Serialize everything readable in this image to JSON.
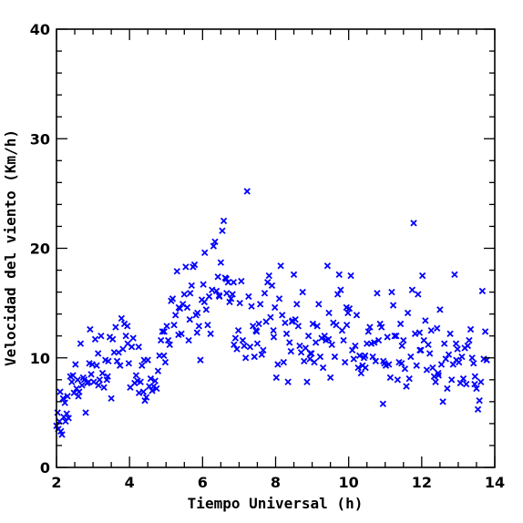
{
  "chart_data": {
    "type": "scatter",
    "title": "",
    "xlabel": "Tiempo Universal (h)",
    "ylabel": "Velocidad del viento (Km/h)",
    "xlim": [
      2,
      14
    ],
    "ylim": [
      0,
      40
    ],
    "xticks": [
      2,
      4,
      6,
      8,
      10,
      12,
      14
    ],
    "yticks": [
      0,
      10,
      20,
      30,
      40
    ],
    "xtick_labels": [
      "2",
      "4",
      "6",
      "8",
      "10",
      "12",
      "14"
    ],
    "ytick_labels": [
      "0",
      "10",
      "20",
      "30",
      "40"
    ],
    "grid": false,
    "legend": "none",
    "marker_color": "#0000ff",
    "marker": "x",
    "points": [
      [
        2.0,
        3.8
      ],
      [
        2.03,
        5.0
      ],
      [
        2.05,
        3.5
      ],
      [
        2.08,
        4.2
      ],
      [
        2.1,
        6.9
      ],
      [
        2.12,
        3.3
      ],
      [
        2.15,
        3.0
      ],
      [
        2.18,
        6.3
      ],
      [
        2.2,
        4.6
      ],
      [
        2.23,
        5.9
      ],
      [
        2.25,
        4.2
      ],
      [
        2.28,
        4.9
      ],
      [
        2.3,
        6.5
      ],
      [
        2.33,
        4.5
      ],
      [
        2.38,
        8.3
      ],
      [
        2.42,
        7.8
      ],
      [
        2.45,
        8.4
      ],
      [
        2.48,
        6.8
      ],
      [
        2.52,
        9.4
      ],
      [
        2.55,
        7.2
      ],
      [
        2.58,
        8.0
      ],
      [
        2.62,
        6.9
      ],
      [
        2.66,
        11.3
      ],
      [
        2.7,
        7.5
      ],
      [
        2.73,
        8.2
      ],
      [
        2.76,
        8.0
      ],
      [
        2.8,
        5.0
      ],
      [
        2.84,
        7.7
      ],
      [
        2.88,
        7.8
      ],
      [
        2.92,
        12.6
      ],
      [
        2.95,
        8.5
      ],
      [
        2.98,
        9.4
      ],
      [
        3.02,
        7.8
      ],
      [
        3.06,
        11.7
      ],
      [
        3.1,
        9.3
      ],
      [
        3.14,
        10.4
      ],
      [
        3.18,
        8.0
      ],
      [
        3.22,
        12.0
      ],
      [
        3.26,
        8.6
      ],
      [
        3.3,
        7.3
      ],
      [
        3.34,
        9.8
      ],
      [
        3.38,
        8.0
      ],
      [
        3.42,
        9.7
      ],
      [
        3.46,
        11.9
      ],
      [
        3.5,
        6.3
      ],
      [
        3.54,
        11.7
      ],
      [
        3.58,
        10.5
      ],
      [
        3.62,
        12.8
      ],
      [
        3.66,
        9.7
      ],
      [
        3.7,
        10.5
      ],
      [
        3.74,
        9.3
      ],
      [
        3.78,
        13.6
      ],
      [
        3.82,
        10.8
      ],
      [
        3.86,
        13.1
      ],
      [
        3.9,
        12.0
      ],
      [
        3.94,
        12.9
      ],
      [
        3.98,
        9.5
      ],
      [
        4.02,
        7.3
      ],
      [
        4.06,
        11.0
      ],
      [
        4.1,
        11.8
      ],
      [
        4.14,
        7.7
      ],
      [
        4.18,
        8.4
      ],
      [
        4.22,
        7.9
      ],
      [
        4.26,
        6.8
      ],
      [
        4.3,
        7.8
      ],
      [
        4.34,
        9.3
      ],
      [
        4.38,
        6.9
      ],
      [
        4.42,
        6.1
      ],
      [
        4.46,
        6.4
      ],
      [
        4.5,
        9.8
      ],
      [
        4.54,
        7.4
      ],
      [
        4.58,
        8.1
      ],
      [
        4.62,
        7.0
      ],
      [
        4.66,
        7.4
      ],
      [
        4.7,
        7.9
      ],
      [
        4.74,
        7.2
      ],
      [
        4.78,
        8.8
      ],
      [
        4.82,
        10.2
      ],
      [
        4.86,
        11.6
      ],
      [
        4.9,
        12.4
      ],
      [
        4.94,
        10.2
      ],
      [
        4.98,
        9.6
      ],
      [
        5.02,
        12.9
      ],
      [
        5.06,
        11.6
      ],
      [
        5.1,
        11.2
      ],
      [
        5.14,
        15.2
      ],
      [
        5.18,
        15.4
      ],
      [
        5.22,
        13.0
      ],
      [
        5.26,
        13.9
      ],
      [
        5.3,
        17.9
      ],
      [
        5.34,
        12.1
      ],
      [
        5.38,
        14.5
      ],
      [
        5.42,
        12.2
      ],
      [
        5.46,
        14.9
      ],
      [
        5.5,
        15.8
      ],
      [
        5.54,
        18.3
      ],
      [
        5.58,
        14.6
      ],
      [
        5.62,
        11.6
      ],
      [
        5.66,
        15.9
      ],
      [
        5.7,
        16.6
      ],
      [
        5.74,
        18.3
      ],
      [
        5.78,
        18.5
      ],
      [
        5.82,
        13.9
      ],
      [
        5.86,
        14.1
      ],
      [
        5.9,
        12.9
      ],
      [
        5.94,
        9.8
      ],
      [
        5.98,
        15.3
      ],
      [
        6.02,
        16.7
      ],
      [
        6.06,
        19.6
      ],
      [
        6.1,
        14.4
      ],
      [
        6.14,
        13.0
      ],
      [
        6.18,
        15.6
      ],
      [
        6.22,
        12.2
      ],
      [
        6.26,
        16.2
      ],
      [
        6.3,
        20.2
      ],
      [
        6.34,
        20.6
      ],
      [
        6.38,
        16.1
      ],
      [
        6.42,
        17.4
      ],
      [
        6.46,
        15.6
      ],
      [
        6.5,
        18.7
      ],
      [
        6.54,
        21.6
      ],
      [
        6.58,
        22.5
      ],
      [
        6.62,
        17.3
      ],
      [
        6.66,
        15.9
      ],
      [
        6.7,
        16.9
      ],
      [
        6.74,
        15.1
      ],
      [
        6.78,
        15.4
      ],
      [
        6.82,
        15.8
      ],
      [
        6.86,
        11.2
      ],
      [
        6.9,
        11.8
      ],
      [
        6.94,
        10.8
      ],
      [
        6.98,
        12.5
      ],
      [
        7.02,
        15.0
      ],
      [
        7.06,
        17.0
      ],
      [
        7.1,
        11.6
      ],
      [
        7.14,
        11.1
      ],
      [
        7.18,
        10.0
      ],
      [
        7.22,
        25.2
      ],
      [
        7.26,
        15.6
      ],
      [
        7.3,
        11.0
      ],
      [
        7.34,
        14.7
      ],
      [
        7.38,
        12.9
      ],
      [
        7.42,
        10.1
      ],
      [
        7.46,
        12.5
      ],
      [
        7.5,
        11.3
      ],
      [
        7.54,
        13.1
      ],
      [
        7.58,
        14.9
      ],
      [
        7.62,
        10.3
      ],
      [
        7.66,
        10.7
      ],
      [
        7.7,
        15.9
      ],
      [
        7.74,
        13.3
      ],
      [
        7.78,
        16.9
      ],
      [
        7.82,
        17.5
      ],
      [
        7.86,
        13.7
      ],
      [
        7.9,
        16.6
      ],
      [
        7.94,
        12.5
      ],
      [
        7.98,
        14.6
      ],
      [
        8.02,
        8.2
      ],
      [
        8.06,
        9.4
      ],
      [
        8.1,
        15.4
      ],
      [
        8.14,
        18.4
      ],
      [
        8.18,
        13.9
      ],
      [
        8.22,
        9.6
      ],
      [
        8.26,
        13.2
      ],
      [
        8.3,
        12.2
      ],
      [
        8.34,
        7.8
      ],
      [
        8.38,
        11.4
      ],
      [
        8.42,
        10.6
      ],
      [
        8.46,
        13.4
      ],
      [
        8.5,
        17.6
      ],
      [
        8.54,
        13.5
      ],
      [
        8.58,
        14.9
      ],
      [
        8.62,
        12.9
      ],
      [
        8.66,
        11.1
      ],
      [
        8.7,
        10.5
      ],
      [
        8.74,
        16.0
      ],
      [
        8.78,
        9.7
      ],
      [
        8.82,
        10.9
      ],
      [
        8.86,
        7.8
      ],
      [
        8.9,
        12.0
      ],
      [
        8.94,
        9.9
      ],
      [
        8.98,
        10.4
      ],
      [
        9.02,
        13.1
      ],
      [
        9.06,
        9.6
      ],
      [
        9.1,
        11.4
      ],
      [
        9.14,
        12.9
      ],
      [
        9.18,
        14.9
      ],
      [
        9.22,
        10.1
      ],
      [
        9.26,
        11.8
      ],
      [
        9.3,
        9.1
      ],
      [
        9.34,
        12.0
      ],
      [
        9.38,
        11.6
      ],
      [
        9.42,
        18.4
      ],
      [
        9.46,
        14.1
      ],
      [
        9.5,
        8.2
      ],
      [
        9.54,
        11.2
      ],
      [
        9.58,
        13.2
      ],
      [
        9.62,
        10.1
      ],
      [
        9.66,
        13.0
      ],
      [
        9.7,
        15.8
      ],
      [
        9.74,
        17.6
      ],
      [
        9.78,
        16.2
      ],
      [
        9.82,
        12.5
      ],
      [
        9.86,
        11.6
      ],
      [
        9.9,
        9.6
      ],
      [
        9.94,
        14.6
      ],
      [
        9.98,
        14.1
      ],
      [
        10.02,
        14.5
      ],
      [
        10.06,
        17.5
      ],
      [
        10.1,
        10.7
      ],
      [
        10.14,
        9.9
      ],
      [
        10.18,
        11.1
      ],
      [
        10.22,
        13.9
      ],
      [
        10.26,
        9.1
      ],
      [
        10.3,
        10.2
      ],
      [
        10.34,
        8.6
      ],
      [
        10.38,
        9.3
      ],
      [
        10.42,
        10.0
      ],
      [
        10.46,
        9.1
      ],
      [
        10.5,
        11.3
      ],
      [
        10.54,
        12.4
      ],
      [
        10.58,
        12.8
      ],
      [
        10.62,
        11.3
      ],
      [
        10.66,
        10.1
      ],
      [
        10.7,
        11.4
      ],
      [
        10.74,
        9.7
      ],
      [
        10.78,
        15.9
      ],
      [
        10.82,
        11.6
      ],
      [
        10.86,
        13.1
      ],
      [
        10.9,
        12.8
      ],
      [
        10.94,
        5.8
      ],
      [
        10.98,
        9.5
      ],
      [
        11.02,
        9.3
      ],
      [
        11.06,
        11.9
      ],
      [
        11.1,
        9.4
      ],
      [
        11.14,
        8.2
      ],
      [
        11.18,
        16.0
      ],
      [
        11.22,
        14.8
      ],
      [
        11.26,
        12.0
      ],
      [
        11.3,
        12.0
      ],
      [
        11.34,
        8.0
      ],
      [
        11.38,
        9.6
      ],
      [
        11.42,
        13.1
      ],
      [
        11.46,
        11.1
      ],
      [
        11.5,
        11.6
      ],
      [
        11.54,
        9.0
      ],
      [
        11.58,
        7.4
      ],
      [
        11.62,
        14.1
      ],
      [
        11.66,
        8.1
      ],
      [
        11.7,
        10.1
      ],
      [
        11.74,
        16.2
      ],
      [
        11.78,
        22.3
      ],
      [
        11.82,
        12.2
      ],
      [
        11.86,
        9.3
      ],
      [
        11.9,
        15.8
      ],
      [
        11.94,
        12.3
      ],
      [
        11.98,
        10.7
      ],
      [
        12.02,
        17.5
      ],
      [
        12.06,
        11.6
      ],
      [
        12.1,
        13.4
      ],
      [
        12.14,
        8.9
      ],
      [
        12.18,
        11.2
      ],
      [
        12.22,
        10.4
      ],
      [
        12.26,
        12.5
      ],
      [
        12.3,
        9.1
      ],
      [
        12.34,
        8.3
      ],
      [
        12.38,
        7.8
      ],
      [
        12.42,
        12.7
      ],
      [
        12.46,
        8.4
      ],
      [
        12.5,
        14.4
      ],
      [
        12.54,
        9.4
      ],
      [
        12.58,
        6.0
      ],
      [
        12.62,
        11.3
      ],
      [
        12.66,
        9.9
      ],
      [
        12.7,
        7.2
      ],
      [
        12.74,
        10.3
      ],
      [
        12.78,
        12.2
      ],
      [
        12.82,
        8.0
      ],
      [
        12.86,
        9.4
      ],
      [
        12.9,
        17.6
      ],
      [
        12.94,
        11.3
      ],
      [
        12.98,
        10.8
      ],
      [
        13.02,
        9.6
      ],
      [
        13.06,
        7.7
      ],
      [
        13.1,
        10.1
      ],
      [
        13.14,
        8.1
      ],
      [
        13.18,
        10.9
      ],
      [
        13.22,
        7.6
      ],
      [
        13.26,
        11.1
      ],
      [
        13.3,
        11.6
      ],
      [
        13.34,
        12.6
      ],
      [
        13.38,
        10.0
      ],
      [
        13.42,
        9.5
      ],
      [
        13.46,
        8.3
      ],
      [
        13.5,
        7.2
      ],
      [
        13.54,
        5.3
      ],
      [
        13.58,
        6.1
      ],
      [
        13.62,
        7.8
      ],
      [
        13.66,
        16.1
      ],
      [
        13.7,
        9.9
      ],
      [
        13.74,
        12.4
      ],
      [
        13.78,
        9.8
      ],
      [
        2.6,
        6.5
      ],
      [
        2.9,
        9.5
      ],
      [
        3.4,
        8.3
      ],
      [
        3.95,
        11.3
      ],
      [
        4.4,
        9.8
      ],
      [
        4.95,
        12.4
      ],
      [
        5.35,
        14.6
      ],
      [
        5.65,
        13.5
      ],
      [
        6.05,
        15.1
      ],
      [
        6.45,
        15.7
      ],
      [
        6.85,
        16.9
      ],
      [
        7.48,
        12.4
      ],
      [
        7.95,
        11.9
      ],
      [
        8.45,
        13.3
      ],
      [
        8.95,
        10.4
      ],
      [
        9.45,
        11.7
      ],
      [
        9.95,
        13.0
      ],
      [
        10.45,
        10.2
      ],
      [
        10.95,
        9.7
      ],
      [
        11.45,
        9.5
      ],
      [
        11.95,
        10.7
      ],
      [
        12.45,
        8.6
      ],
      [
        12.95,
        9.8
      ],
      [
        13.45,
        7.6
      ],
      [
        6.65,
        17.2
      ],
      [
        5.85,
        12.3
      ],
      [
        4.25,
        11.0
      ],
      [
        3.15,
        7.5
      ]
    ]
  }
}
